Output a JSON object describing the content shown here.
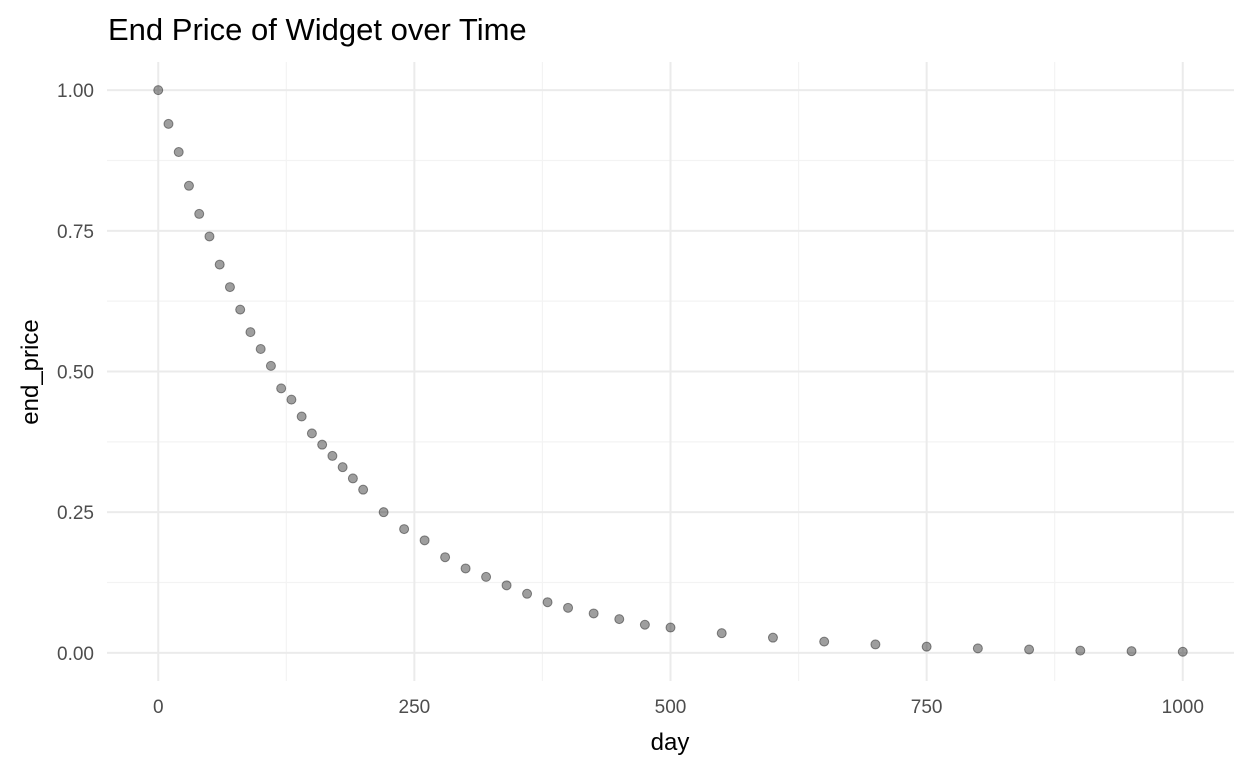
{
  "chart_data": {
    "type": "scatter",
    "title": "End Price of Widget over Time",
    "xlabel": "day",
    "ylabel": "end_price",
    "xlim": [
      -50,
      1050
    ],
    "ylim": [
      -0.05,
      1.05
    ],
    "x_ticks": [
      0,
      250,
      500,
      750,
      1000
    ],
    "x_tick_labels": [
      "0",
      "250",
      "500",
      "750",
      "1000"
    ],
    "y_ticks": [
      0,
      0.25,
      0.5,
      0.75,
      1.0
    ],
    "y_tick_labels": [
      "0.00",
      "0.25",
      "0.50",
      "0.75",
      "1.00"
    ],
    "x_minor_ticks": [
      125,
      375,
      625,
      875
    ],
    "y_minor_ticks": [
      0.125,
      0.375,
      0.625,
      0.875
    ],
    "grid": true,
    "legend": "none",
    "point_color": "#000000",
    "point_alpha": 0.4,
    "x": [
      0,
      10,
      20,
      30,
      40,
      50,
      60,
      70,
      80,
      90,
      100,
      110,
      120,
      130,
      140,
      150,
      160,
      170,
      180,
      190,
      200,
      220,
      240,
      260,
      280,
      300,
      320,
      340,
      360,
      380,
      400,
      425,
      450,
      475,
      500,
      550,
      600,
      650,
      700,
      750,
      800,
      850,
      900,
      950,
      1000
    ],
    "y": [
      1.0,
      0.94,
      0.89,
      0.83,
      0.78,
      0.74,
      0.69,
      0.65,
      0.61,
      0.57,
      0.54,
      0.51,
      0.47,
      0.45,
      0.42,
      0.39,
      0.37,
      0.35,
      0.33,
      0.31,
      0.29,
      0.25,
      0.22,
      0.2,
      0.17,
      0.15,
      0.135,
      0.12,
      0.105,
      0.09,
      0.08,
      0.07,
      0.06,
      0.05,
      0.045,
      0.035,
      0.027,
      0.02,
      0.015,
      0.011,
      0.008,
      0.006,
      0.004,
      0.003,
      0.002
    ]
  }
}
